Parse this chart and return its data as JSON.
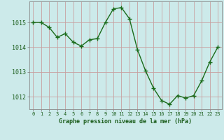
{
  "x": [
    0,
    1,
    2,
    3,
    4,
    5,
    6,
    7,
    8,
    9,
    10,
    11,
    12,
    13,
    14,
    15,
    16,
    17,
    18,
    19,
    20,
    21,
    22,
    23
  ],
  "y": [
    1015.0,
    1015.0,
    1014.8,
    1014.4,
    1014.55,
    1014.2,
    1014.05,
    1014.3,
    1014.35,
    1015.0,
    1015.55,
    1015.6,
    1015.15,
    1013.9,
    1013.05,
    1012.35,
    1011.85,
    1011.7,
    1012.05,
    1011.95,
    1012.05,
    1012.65,
    1013.4,
    1014.0
  ],
  "line_color": "#1a6b1a",
  "marker": "+",
  "marker_size": 4,
  "bg_color": "#cceaea",
  "grid_color": "#c8a0a0",
  "xlabel": "Graphe pression niveau de la mer (hPa)",
  "xlabel_color": "#1a5c1a",
  "tick_color": "#1a5c1a",
  "ylim": [
    1011.5,
    1015.85
  ],
  "xlim": [
    -0.5,
    23.5
  ],
  "yticks": [
    1012,
    1013,
    1014,
    1015
  ],
  "xticks": [
    0,
    1,
    2,
    3,
    4,
    5,
    6,
    7,
    8,
    9,
    10,
    11,
    12,
    13,
    14,
    15,
    16,
    17,
    18,
    19,
    20,
    21,
    22,
    23
  ],
  "linewidth": 1.0,
  "spine_color": "#888888",
  "tick_fontsize": 5.0,
  "xlabel_fontsize": 6.0
}
